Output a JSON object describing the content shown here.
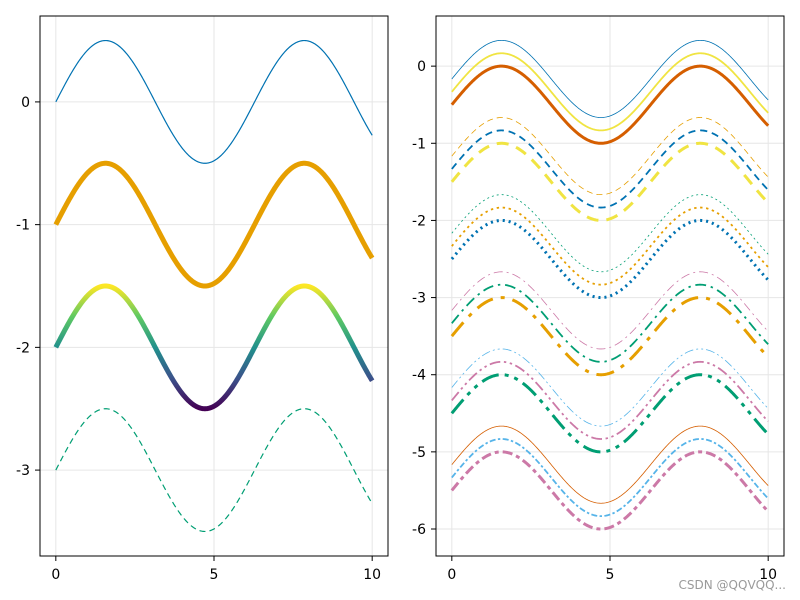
{
  "watermark": "CSDN @QQVQQ...",
  "chart_data": [
    {
      "type": "line",
      "title": "",
      "xlabel": "",
      "ylabel": "",
      "x_function": "0.5*sin(x) + offset",
      "x_range": [
        0,
        10
      ],
      "xlim": [
        -0.5,
        10.5
      ],
      "ylim": [
        -3.7,
        0.7
      ],
      "xticks": [
        0,
        5,
        10
      ],
      "yticks": [
        0,
        -1,
        -2,
        -3
      ],
      "grid": true,
      "legend": "none",
      "series": [
        {
          "offset": 0,
          "color": "#0072b2",
          "linewidth": 1.2,
          "linestyle": "solid"
        },
        {
          "offset": -1,
          "color": "#e69f00",
          "linewidth": 5,
          "linestyle": "solid"
        },
        {
          "offset": -2,
          "color": "viridis-gradient",
          "linewidth": 5,
          "linestyle": "solid"
        },
        {
          "offset": -3,
          "color": "#009e73",
          "linewidth": 1.2,
          "linestyle": "dashed"
        }
      ]
    },
    {
      "type": "line",
      "title": "",
      "xlabel": "",
      "ylabel": "",
      "x_function": "0.5*sin(x) + offset",
      "x_range": [
        0,
        10
      ],
      "xlim": [
        -0.5,
        10.5
      ],
      "ylim": [
        -6.35,
        0.65
      ],
      "xticks": [
        0,
        5,
        10
      ],
      "yticks": [
        0,
        -1,
        -2,
        -3,
        -4,
        -5,
        -6
      ],
      "grid": true,
      "legend": "none",
      "series": [
        {
          "offset": -0.166,
          "color": "#0072b2",
          "linewidth": 0.8,
          "linestyle": "solid"
        },
        {
          "offset": -0.333,
          "color": "#f0e442",
          "linewidth": 1.8,
          "linestyle": "solid"
        },
        {
          "offset": -0.5,
          "color": "#d55e00",
          "linewidth": 3,
          "linestyle": "solid"
        },
        {
          "offset": -1.166,
          "color": "#e69f00",
          "linewidth": 0.8,
          "linestyle": "dashed"
        },
        {
          "offset": -1.333,
          "color": "#0072b2",
          "linewidth": 1.8,
          "linestyle": "dashed"
        },
        {
          "offset": -1.5,
          "color": "#f0e442",
          "linewidth": 3,
          "linestyle": "dashed"
        },
        {
          "offset": -2.166,
          "color": "#009e73",
          "linewidth": 0.8,
          "linestyle": "dotted"
        },
        {
          "offset": -2.333,
          "color": "#e69f00",
          "linewidth": 1.8,
          "linestyle": "dotted"
        },
        {
          "offset": -2.5,
          "color": "#0072b2",
          "linewidth": 3,
          "linestyle": "dotted"
        },
        {
          "offset": -3.166,
          "color": "#cc79a7",
          "linewidth": 0.8,
          "linestyle": "dashdot"
        },
        {
          "offset": -3.333,
          "color": "#009e73",
          "linewidth": 1.8,
          "linestyle": "dashdot"
        },
        {
          "offset": -3.5,
          "color": "#e69f00",
          "linewidth": 3,
          "linestyle": "dashdot"
        },
        {
          "offset": -4.166,
          "color": "#56b4e9",
          "linewidth": 0.8,
          "linestyle": "dashdotdot"
        },
        {
          "offset": -4.333,
          "color": "#cc79a7",
          "linewidth": 1.8,
          "linestyle": "dashdotdot"
        },
        {
          "offset": -4.5,
          "color": "#009e73",
          "linewidth": 3,
          "linestyle": "dashdotdot"
        },
        {
          "offset": -5.166,
          "color": "#d55e00",
          "linewidth": 0.8,
          "linestyle": "solid"
        },
        {
          "offset": -5.333,
          "color": "#56b4e9",
          "linewidth": 1.8,
          "linestyle": "dashdot-dense"
        },
        {
          "offset": -5.5,
          "color": "#cc79a7",
          "linewidth": 3,
          "linestyle": "dashdot-dense"
        }
      ]
    }
  ]
}
